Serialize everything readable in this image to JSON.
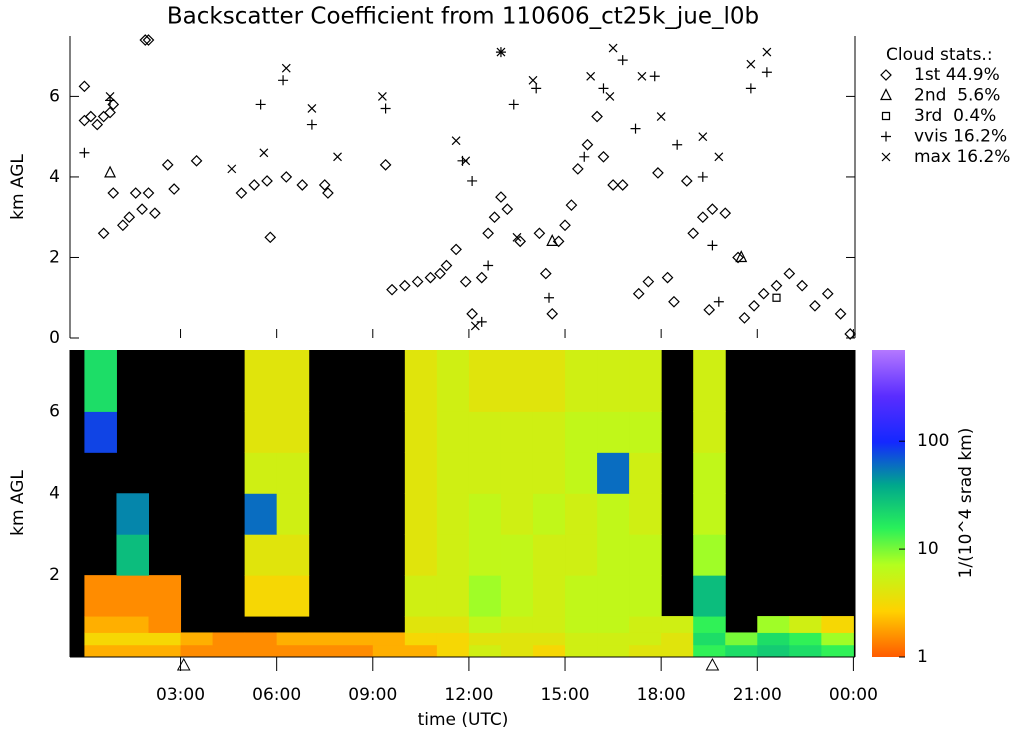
{
  "chart_data": [
    {
      "type": "scatter",
      "title": "Backscatter Coefficient from 110606_ct25k_jue_l0b",
      "ylabel": "km AGL",
      "xlim": [
        -0.45,
        24.05
      ],
      "ylim": [
        0,
        7.5
      ],
      "yticks": [
        0,
        2,
        4,
        6
      ],
      "legend_title": "Cloud stats.:",
      "series": [
        {
          "name": "1st 44.9%",
          "marker": "diamond",
          "color": "#000000",
          "x": [
            0,
            0,
            0.2,
            0.4,
            0.6,
            0.8,
            0.9,
            0.6,
            0.9,
            1.2,
            1.4,
            1.6,
            1.8,
            2.0,
            2.2,
            1.9,
            2.0,
            2.6,
            2.8,
            3.5,
            4.9,
            5.3,
            5.7,
            5.8,
            6.3,
            6.8,
            7.5,
            7.6,
            9.4,
            9.6,
            10.0,
            10.4,
            10.8,
            11.1,
            11.3,
            11.6,
            11.9,
            12.1,
            12.4,
            12.6,
            12.8,
            13.0,
            13.2,
            13.6,
            14.2,
            14.4,
            14.6,
            14.8,
            15.0,
            15.2,
            15.4,
            15.7,
            16.0,
            16.2,
            16.5,
            16.8,
            17.3,
            17.6,
            17.9,
            18.2,
            18.4,
            18.8,
            19.0,
            19.3,
            19.6,
            20.0,
            20.4,
            20.6,
            20.9,
            21.2,
            21.6,
            22.0,
            22.4,
            22.8,
            23.2,
            23.6,
            23.9,
            19.5
          ],
          "y": [
            6.25,
            5.4,
            5.5,
            5.3,
            5.5,
            5.6,
            5.8,
            2.6,
            3.6,
            2.8,
            3.0,
            3.6,
            3.2,
            3.6,
            3.1,
            7.4,
            7.4,
            4.3,
            3.7,
            4.4,
            3.6,
            3.8,
            3.9,
            2.5,
            4.0,
            3.8,
            3.8,
            3.6,
            4.3,
            1.2,
            1.3,
            1.4,
            1.5,
            1.6,
            1.8,
            2.2,
            1.4,
            0.6,
            1.5,
            2.6,
            3.0,
            3.5,
            3.2,
            2.4,
            2.6,
            1.6,
            0.6,
            2.4,
            2.8,
            3.3,
            4.2,
            4.8,
            5.5,
            4.5,
            3.8,
            3.8,
            1.1,
            1.4,
            4.1,
            1.5,
            0.9,
            3.9,
            2.6,
            3.0,
            3.2,
            3.1,
            2.0,
            0.5,
            0.8,
            1.1,
            1.3,
            1.6,
            1.3,
            0.8,
            1.1,
            0.6,
            0.1,
            0.7
          ]
        },
        {
          "name": "2nd  5.6%",
          "marker": "triangle",
          "color": "#000000",
          "x": [
            0.8,
            14.6,
            20.5
          ],
          "y": [
            4.1,
            2.4,
            2.0
          ]
        },
        {
          "name": "3rd  0.4%",
          "marker": "square",
          "color": "#000000",
          "x": [
            21.6
          ],
          "y": [
            1.0
          ]
        },
        {
          "name": "vvis 16.2%",
          "marker": "plus",
          "color": "#000000",
          "x": [
            0,
            0.8,
            5.5,
            6.2,
            7.1,
            9.4,
            11.8,
            12.1,
            13.0,
            13.4,
            14.1,
            15.6,
            16.2,
            16.8,
            17.2,
            17.8,
            18.5,
            19.3,
            19.6,
            19.8,
            20.8,
            21.3,
            12.4,
            12.6,
            14.5
          ],
          "y": [
            4.6,
            5.9,
            5.8,
            6.4,
            5.3,
            5.7,
            4.4,
            3.9,
            7.1,
            5.8,
            6.2,
            4.5,
            6.2,
            6.9,
            5.2,
            6.5,
            4.8,
            4.0,
            2.3,
            0.9,
            6.2,
            6.6,
            0.4,
            1.8,
            1.0
          ]
        },
        {
          "name": "max 16.2%",
          "marker": "x",
          "color": "#000000",
          "x": [
            0.8,
            4.6,
            5.6,
            6.3,
            7.1,
            7.9,
            9.3,
            11.6,
            11.9,
            13.0,
            14.0,
            15.8,
            16.5,
            17.4,
            18.0,
            19.3,
            19.8,
            20.8,
            21.3,
            12.2,
            13.5,
            16.4
          ],
          "y": [
            6.0,
            4.2,
            4.6,
            6.7,
            5.7,
            4.5,
            6.0,
            4.9,
            4.4,
            7.1,
            6.4,
            6.5,
            7.2,
            6.5,
            5.5,
            5.0,
            4.5,
            6.8,
            7.1,
            0.3,
            2.5,
            6.0
          ]
        }
      ]
    },
    {
      "type": "heatmap",
      "ylabel": "km AGL",
      "xlabel": "time (UTC)",
      "xlim": [
        -0.45,
        24.05
      ],
      "ylim": [
        0,
        7.5
      ],
      "yticks": [
        2,
        4,
        6
      ],
      "xticks": [
        {
          "value": 3,
          "label": "03:00"
        },
        {
          "value": 6,
          "label": "06:00"
        },
        {
          "value": 9,
          "label": "09:00"
        },
        {
          "value": 12,
          "label": "12:00"
        },
        {
          "value": 15,
          "label": "15:00"
        },
        {
          "value": 18,
          "label": "18:00"
        },
        {
          "value": 21,
          "label": "21:00"
        },
        {
          "value": 24,
          "label": "00:00"
        }
      ],
      "x_edges": [
        0,
        1,
        2,
        3,
        4,
        5,
        6,
        7,
        8,
        9,
        10,
        11,
        12,
        13,
        14,
        15,
        16,
        17,
        18,
        19,
        20,
        21,
        22,
        23,
        24
      ],
      "y_edges": [
        0,
        0.3,
        0.6,
        1,
        2,
        3,
        4,
        5,
        6,
        7.5
      ],
      "z": [
        [
          2,
          2,
          2,
          1.5,
          1.5,
          1.5,
          1.5,
          1.5,
          1.5,
          2,
          2,
          3,
          5,
          4,
          3,
          5,
          5,
          4,
          4,
          15,
          20,
          25,
          20,
          15
        ],
        [
          3,
          3,
          3,
          2,
          1.5,
          1.5,
          2,
          2,
          2,
          2,
          3,
          3,
          4,
          4,
          4,
          5,
          5,
          5,
          4,
          20,
          10,
          20,
          15,
          8
        ],
        [
          2,
          2,
          1.5,
          null,
          null,
          null,
          null,
          null,
          null,
          null,
          4,
          4,
          6,
          5,
          5,
          6,
          6,
          5,
          5,
          15,
          null,
          8,
          5,
          3
        ],
        [
          1.5,
          1.5,
          1.5,
          null,
          null,
          3,
          3,
          null,
          null,
          null,
          5,
          5,
          8,
          6,
          5,
          6,
          6,
          6,
          null,
          30,
          null,
          null,
          null,
          null
        ],
        [
          null,
          30,
          null,
          null,
          null,
          4,
          4,
          null,
          null,
          null,
          4,
          5,
          6,
          6,
          5,
          5,
          6,
          6,
          null,
          8,
          null,
          null,
          null,
          null
        ],
        [
          null,
          50,
          null,
          null,
          null,
          60,
          5,
          null,
          null,
          null,
          4,
          5,
          6,
          5,
          6,
          5,
          6,
          5,
          null,
          6,
          null,
          null,
          null,
          null
        ],
        [
          null,
          null,
          null,
          null,
          null,
          5,
          5,
          null,
          null,
          null,
          4,
          5,
          5,
          5,
          5,
          6,
          60,
          5,
          null,
          6,
          null,
          null,
          null,
          null
        ],
        [
          80,
          null,
          null,
          null,
          null,
          4,
          4,
          null,
          null,
          null,
          4,
          5,
          5,
          5,
          5,
          6,
          6,
          6,
          null,
          5,
          null,
          null,
          null,
          null
        ],
        [
          20,
          null,
          null,
          null,
          null,
          4,
          4,
          null,
          null,
          null,
          4,
          5,
          4,
          4,
          4,
          5,
          5,
          5,
          null,
          5,
          null,
          null,
          null,
          null
        ]
      ],
      "log_scale": true,
      "clim": [
        1,
        700
      ],
      "cticks": [
        1,
        10,
        100
      ],
      "colorbar_label": "1/(10^4 srad km)",
      "ground_markers": [
        3.1,
        19.6
      ]
    }
  ]
}
